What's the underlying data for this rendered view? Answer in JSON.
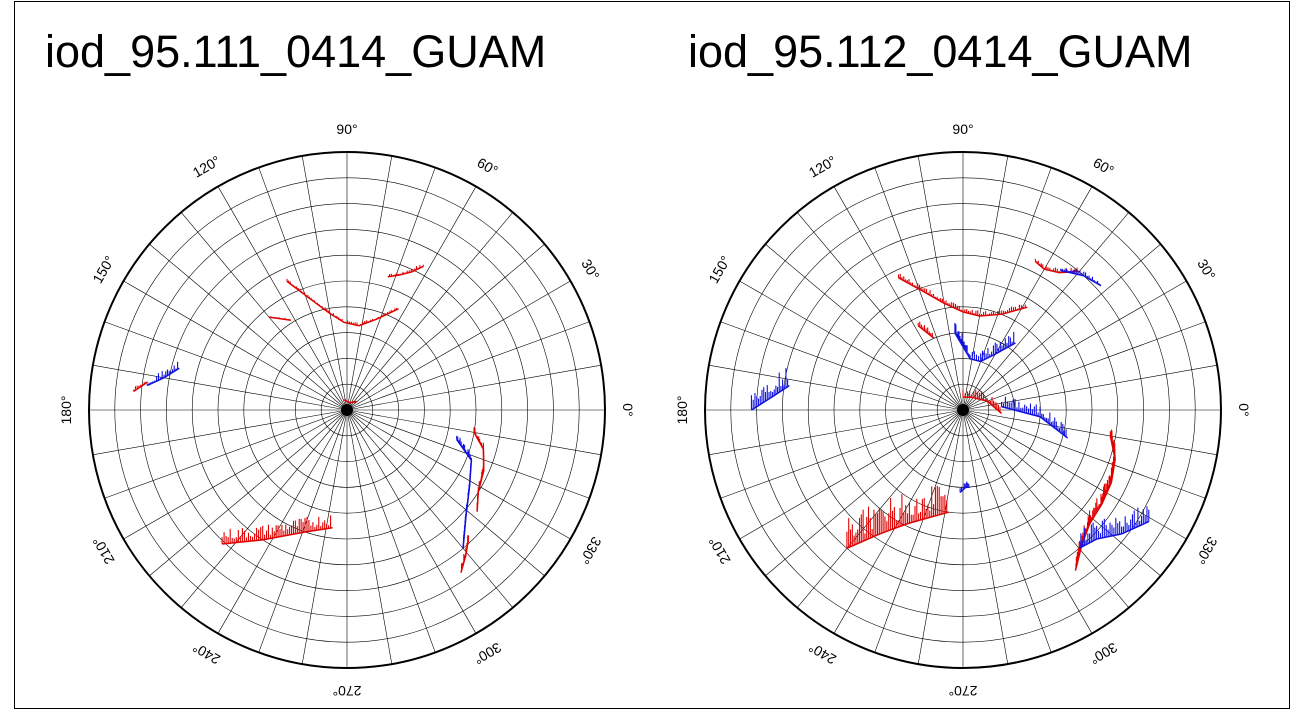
{
  "chart_data": [
    {
      "type": "polar",
      "title": "iod_95.111_0414_GUAM",
      "angle_ticks": [
        "0°",
        "30°",
        "60°",
        "90°",
        "120°",
        "150°",
        "180°",
        "210°",
        "240°",
        "270°",
        "300°",
        "330°"
      ],
      "angle_tick_degrees": [
        0,
        30,
        60,
        90,
        120,
        150,
        180,
        210,
        240,
        270,
        300,
        330
      ],
      "grid": true,
      "colors": {
        "positive": "#e00000",
        "negative": "#1010e0"
      },
      "series": [
        {
          "color": "positive",
          "tracks": [
            {
              "az": [
                62,
                65,
                69,
                73
              ],
              "r": [
                0.63,
                0.59,
                0.56,
                0.54
              ],
              "amp": 0.25
            },
            {
              "az": [
                115,
                108,
                100,
                92,
                82,
                72,
                63
              ],
              "r": [
                0.55,
                0.45,
                0.38,
                0.34,
                0.33,
                0.37,
                0.44
              ],
              "amp": 0.18
            },
            {
              "az": [
                130,
                122
              ],
              "r": [
                0.47,
                0.41
              ],
              "amp": 0.12
            },
            {
              "az": [
                175,
                172
              ],
              "r": [
                0.83,
                0.78
              ],
              "amp": 0.35
            },
            {
              "az": [
                105,
                70,
                40
              ],
              "r": [
                0.04,
                0.03,
                0.05
              ],
              "amp": 0.1
            },
            {
              "az": [
                350,
                344,
                336,
                328,
                322
              ],
              "r": [
                0.5,
                0.55,
                0.58,
                0.6,
                0.64
              ],
              "amp": 0.5
            },
            {
              "az": [
                313,
                309,
                305
              ],
              "r": [
                0.69,
                0.73,
                0.77
              ],
              "amp": 0.6
            },
            {
              "az": [
                227,
                237,
                251,
                263
              ],
              "r": [
                0.71,
                0.6,
                0.5,
                0.46
              ],
              "amp": 1.0
            }
          ]
        },
        {
          "color": "negative",
          "tracks": [
            {
              "az": [
                173,
                170,
                166
              ],
              "r": [
                0.78,
                0.72,
                0.67
              ],
              "amp": 0.5
            },
            {
              "az": [
                345,
                338,
                328,
                318,
                310
              ],
              "r": [
                0.44,
                0.52,
                0.56,
                0.62,
                0.7
              ],
              "amp": 0.45
            }
          ]
        }
      ]
    },
    {
      "type": "polar",
      "title": "iod_95.112_0414_GUAM",
      "angle_ticks": [
        "0°",
        "30°",
        "60°",
        "90°",
        "120°",
        "150°",
        "180°",
        "210°",
        "240°",
        "270°",
        "300°",
        "330°"
      ],
      "angle_tick_degrees": [
        0,
        30,
        60,
        90,
        120,
        150,
        180,
        210,
        240,
        270,
        300,
        330
      ],
      "grid": true,
      "colors": {
        "positive": "#e00000",
        "negative": "#1010e0"
      },
      "series": [
        {
          "color": "positive",
          "tracks": [
            {
              "az": [
                64,
                60,
                55,
                50
              ],
              "r": [
                0.64,
                0.63,
                0.65,
                0.7
              ],
              "amp": 0.3
            },
            {
              "az": [
                116,
                108,
                100,
                90,
                80,
                68,
                58
              ],
              "r": [
                0.57,
                0.48,
                0.42,
                0.38,
                0.37,
                0.4,
                0.47
              ],
              "amp": 0.35
            },
            {
              "az": [
                118,
                112
              ],
              "r": [
                0.37,
                0.3
              ],
              "amp": 0.4
            },
            {
              "az": [
                90,
                55,
                20,
                355
              ],
              "r": [
                0.05,
                0.06,
                0.1,
                0.15
              ],
              "amp": 0.6
            },
            {
              "az": [
                350,
                342,
                334,
                326,
                318,
                311,
                305
              ],
              "r": [
                0.58,
                0.62,
                0.64,
                0.65,
                0.66,
                0.7,
                0.76
              ],
              "amp": 1.0
            },
            {
              "az": [
                230,
                236,
                244,
                252,
                262
              ],
              "r": [
                0.7,
                0.58,
                0.49,
                0.44,
                0.4
              ],
              "amp": 2.2
            }
          ]
        },
        {
          "color": "negative",
          "tracks": [
            {
              "az": [
                55,
                48,
                42
              ],
              "r": [
                0.66,
                0.7,
                0.72
              ],
              "amp": 0.3
            },
            {
              "az": [
                96,
                82,
                70,
                60,
                52
              ],
              "r": [
                0.3,
                0.2,
                0.2,
                0.25,
                0.33
              ],
              "amp": 0.8
            },
            {
              "az": [
                180,
                176,
                172
              ],
              "r": [
                0.82,
                0.74,
                0.68
              ],
              "amp": 1.4
            },
            {
              "az": [
                5,
                355,
                345
              ],
              "r": [
                0.15,
                0.3,
                0.42
              ],
              "amp": 0.8
            },
            {
              "az": [
                329,
                322,
                316,
                310
              ],
              "r": [
                0.84,
                0.78,
                0.72,
                0.7
              ],
              "amp": 1.3
            },
            {
              "az": [
                268,
                272,
                275
              ],
              "r": [
                0.32,
                0.3,
                0.3
              ],
              "amp": 0.4
            }
          ]
        }
      ]
    }
  ]
}
